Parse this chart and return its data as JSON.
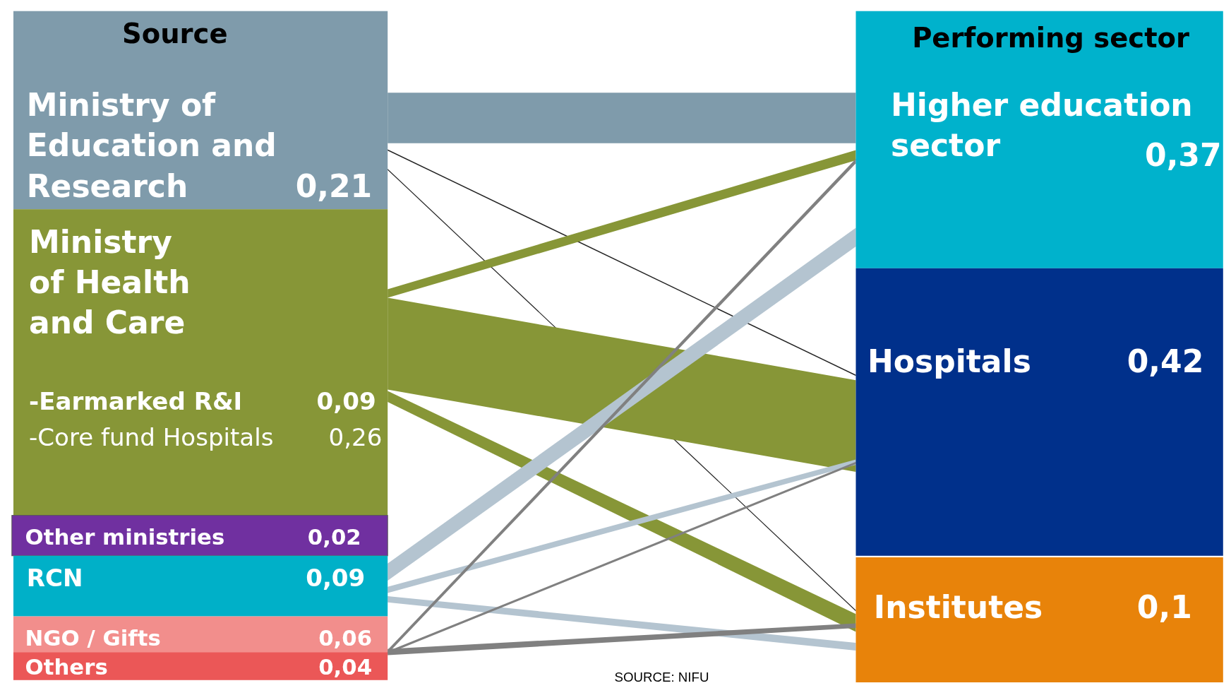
{
  "chart_data": {
    "type": "other",
    "categories": [
      "Ministry of Education and Research",
      "Ministry of Health and Care",
      "-Earmarked R&I",
      "-Core fund Hospitals",
      "Other ministries",
      "RCN",
      "NGO / Gifts",
      "Others",
      "Higher education sector",
      "Hospitals",
      "Institutes"
    ],
    "values": [
      0.21,
      null,
      0.09,
      0.26,
      0.02,
      0.09,
      0.06,
      0.04,
      0.37,
      0.42,
      0.1
    ],
    "value_labels": [
      "0,21",
      null,
      "0,09",
      "0,26",
      "0,02",
      "0,09",
      "0,06",
      "0,04",
      "0,37",
      "0,42",
      "0,1"
    ],
    "colors": [
      "#7f9bab",
      "#879637",
      null,
      null,
      "#7030a0",
      "#00b0c8",
      "#f28e8c",
      "#eb5757",
      "#00b2cc",
      "#00308b",
      "#e8830a"
    ],
    "annotations": [
      "Source",
      "Performing sector",
      "SOURCE: NIFU"
    ]
  }
}
